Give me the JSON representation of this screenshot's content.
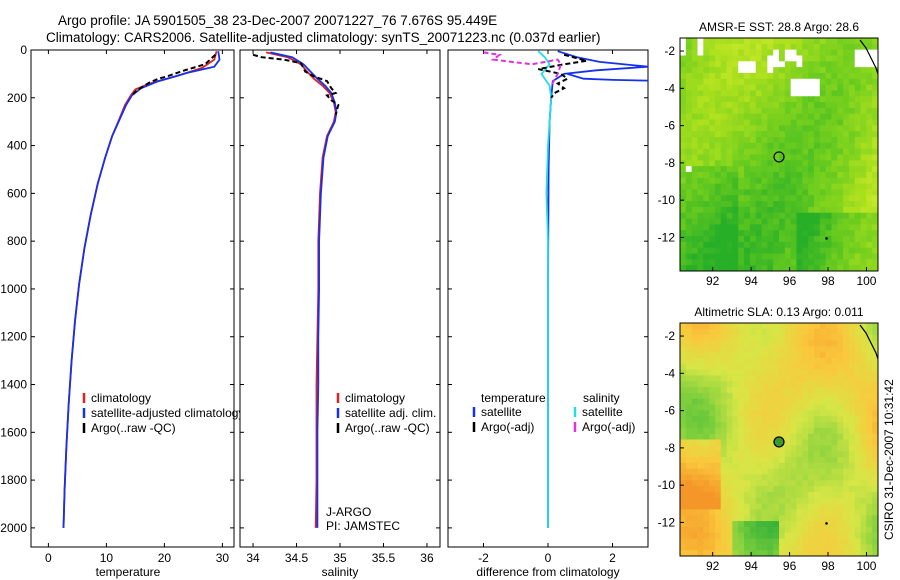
{
  "title": {
    "line1": "Argo profile: JA 5901505_38 23-Dec-2007 20071227_76 7.676S 95.449E",
    "line2": "Climatology: CARS2006. Satellite-adjusted climatology: synTS_20071223.nc (0.037d earlier)"
  },
  "side_stamp": "CSIRO 31-Dec-2007 10:31:42",
  "colors": {
    "climatology": "#dd2222",
    "satellite": "#1530ee",
    "argo": "#000000",
    "salinity_satellite": "#22dde6",
    "salinity_argo": "#e030e0"
  },
  "chart_data": [
    {
      "type": "line",
      "name": "temperature",
      "xlabel": "temperature",
      "ylabel": "",
      "xlim": [
        -3,
        32
      ],
      "ylim": [
        0,
        2080
      ],
      "xticks": [
        0,
        10,
        20,
        30
      ],
      "yticks": [
        0,
        200,
        400,
        600,
        800,
        1000,
        1200,
        1400,
        1600,
        1800,
        2000
      ],
      "legend": [
        "climatology",
        "satellite-adjusted climatology",
        "Argo(..raw -QC)"
      ],
      "legend_position": "lower-center",
      "series": [
        {
          "name": "climatology",
          "color": "climatology",
          "dash": "",
          "points": [
            [
              29.0,
              5
            ],
            [
              28.6,
              40
            ],
            [
              26.5,
              75
            ],
            [
              22.0,
              110
            ],
            [
              17.5,
              140
            ],
            [
              15.0,
              165
            ],
            [
              14.2,
              190
            ],
            [
              13.2,
              230
            ],
            [
              12.2,
              290
            ],
            [
              11.0,
              360
            ],
            [
              9.8,
              450
            ],
            [
              8.5,
              560
            ],
            [
              7.3,
              690
            ],
            [
              6.2,
              830
            ],
            [
              5.3,
              980
            ],
            [
              4.6,
              1130
            ],
            [
              4.0,
              1300
            ],
            [
              3.5,
              1480
            ],
            [
              3.1,
              1660
            ],
            [
              2.8,
              1840
            ],
            [
              2.6,
              2000
            ]
          ]
        },
        {
          "name": "satellite-adjusted climatology",
          "color": "satellite",
          "dash": "",
          "points": [
            [
              29.3,
              5
            ],
            [
              29.5,
              40
            ],
            [
              28.6,
              70
            ],
            [
              24.0,
              95
            ],
            [
              19.0,
              130
            ],
            [
              16.0,
              160
            ],
            [
              14.4,
              190
            ],
            [
              13.4,
              230
            ],
            [
              12.3,
              290
            ],
            [
              11.0,
              360
            ],
            [
              9.8,
              450
            ],
            [
              8.5,
              560
            ],
            [
              7.3,
              690
            ],
            [
              6.2,
              830
            ],
            [
              5.3,
              980
            ],
            [
              4.6,
              1130
            ],
            [
              4.0,
              1300
            ],
            [
              3.5,
              1480
            ],
            [
              3.1,
              1660
            ],
            [
              2.8,
              1840
            ],
            [
              2.6,
              2000
            ]
          ]
        },
        {
          "name": "Argo(..raw -QC)",
          "color": "argo",
          "dash": "5,3",
          "points": [
            [
              28.8,
              20
            ],
            [
              27.0,
              60
            ],
            [
              23.5,
              85
            ],
            [
              20.5,
              110
            ],
            [
              19.0,
              120
            ],
            [
              17.5,
              135
            ],
            [
              16.5,
              150
            ],
            [
              15.2,
              170
            ],
            [
              14.6,
              185
            ]
          ]
        }
      ]
    },
    {
      "type": "line",
      "name": "salinity",
      "xlabel": "salinity",
      "ylabel": "",
      "xlim": [
        33.85,
        36.15
      ],
      "ylim": [
        0,
        2080
      ],
      "xticks": [
        "34",
        "34.5",
        "35",
        "35.5",
        "36"
      ],
      "xtick_values": [
        34,
        34.5,
        35,
        35.5,
        36
      ],
      "yticks": [],
      "legend": [
        "climatology",
        "satellite adj. clim.",
        "Argo(..raw -QC)"
      ],
      "legend_position": "lower-right",
      "annotations": [
        "J-ARGO",
        "PI: JAMSTEC"
      ],
      "series": [
        {
          "name": "climatology",
          "color": "climatology",
          "dash": "",
          "points": [
            [
              34.15,
              10
            ],
            [
              34.4,
              30
            ],
            [
              34.55,
              60
            ],
            [
              34.62,
              90
            ],
            [
              34.7,
              120
            ],
            [
              34.8,
              150
            ],
            [
              34.88,
              180
            ],
            [
              34.93,
              220
            ],
            [
              34.95,
              260
            ],
            [
              34.93,
              300
            ],
            [
              34.85,
              360
            ],
            [
              34.8,
              450
            ],
            [
              34.77,
              600
            ],
            [
              34.75,
              800
            ],
            [
              34.75,
              1000
            ],
            [
              34.74,
              1200
            ],
            [
              34.73,
              1400
            ],
            [
              34.73,
              1600
            ],
            [
              34.73,
              1800
            ],
            [
              34.72,
              2000
            ]
          ]
        },
        {
          "name": "satellite adj. clim.",
          "color": "satellite",
          "dash": "",
          "points": [
            [
              34.2,
              10
            ],
            [
              34.45,
              30
            ],
            [
              34.58,
              60
            ],
            [
              34.66,
              90
            ],
            [
              34.74,
              120
            ],
            [
              34.83,
              150
            ],
            [
              34.9,
              180
            ],
            [
              34.94,
              220
            ],
            [
              34.96,
              260
            ],
            [
              34.94,
              300
            ],
            [
              34.86,
              360
            ],
            [
              34.81,
              450
            ],
            [
              34.78,
              600
            ],
            [
              34.76,
              800
            ],
            [
              34.76,
              1000
            ],
            [
              34.75,
              1200
            ],
            [
              34.75,
              1400
            ],
            [
              34.74,
              1600
            ],
            [
              34.74,
              1800
            ],
            [
              34.74,
              2000
            ]
          ]
        },
        {
          "name": "Argo(..raw -QC)",
          "color": "argo",
          "dash": "5,3",
          "points": [
            [
              34.0,
              20
            ],
            [
              34.1,
              30
            ],
            [
              34.35,
              40
            ],
            [
              34.55,
              55
            ],
            [
              34.6,
              90
            ],
            [
              34.7,
              110
            ],
            [
              34.85,
              130
            ],
            [
              34.9,
              160
            ],
            [
              34.95,
              180
            ],
            [
              34.85,
              190
            ],
            [
              34.9,
              210
            ],
            [
              34.98,
              230
            ],
            [
              34.95,
              270
            ]
          ]
        }
      ]
    },
    {
      "type": "line",
      "name": "difference",
      "xlabel": "difference from climatology",
      "ylabel": "",
      "xlim": [
        -3.1,
        3.1
      ],
      "ylim": [
        0,
        2080
      ],
      "xticks": [
        -2,
        0,
        2
      ],
      "yticks": [],
      "legend_left_title": "temperature",
      "legend_right_title": "salinity",
      "legend_left": [
        "satellite",
        "Argo(-adj)"
      ],
      "legend_right": [
        "satellite",
        "Argo(-adj)"
      ],
      "legend_position": "lower-center",
      "series": [
        {
          "name": "temperature satellite",
          "color": "satellite",
          "dash": "",
          "points": [
            [
              0.3,
              5
            ],
            [
              0.9,
              30
            ],
            [
              1.6,
              50
            ],
            [
              3.1,
              70
            ],
            [
              1.5,
              85
            ],
            [
              0.5,
              100
            ],
            [
              0.15,
              130
            ],
            [
              0.1,
              200
            ],
            [
              0.05,
              300
            ],
            [
              0.02,
              500
            ],
            [
              0,
              1000
            ],
            [
              0,
              1500
            ],
            [
              0,
              2000
            ]
          ]
        },
        {
          "name": "temperature satellite (deep spike)",
          "color": "satellite",
          "dash": "",
          "points": [
            [
              0.6,
              100
            ],
            [
              1.1,
              120
            ],
            [
              2.0,
              125
            ],
            [
              3.1,
              128
            ]
          ]
        },
        {
          "name": "salinity satellite",
          "color": "salinity_satellite",
          "dash": "",
          "points": [
            [
              -0.3,
              5
            ],
            [
              -0.1,
              30
            ],
            [
              0.05,
              60
            ],
            [
              -0.2,
              100
            ],
            [
              0.05,
              150
            ],
            [
              0.1,
              200
            ],
            [
              0.05,
              300
            ],
            [
              0,
              400
            ],
            [
              -0.05,
              600
            ],
            [
              0,
              800
            ],
            [
              0,
              1000
            ],
            [
              0,
              1400
            ],
            [
              0,
              1800
            ],
            [
              0,
              2000
            ]
          ]
        },
        {
          "name": "temperature Argo(-adj)",
          "color": "argo",
          "dash": "5,3",
          "points": [
            [
              0.5,
              20
            ],
            [
              1.2,
              45
            ],
            [
              0.5,
              60
            ],
            [
              -0.3,
              80
            ],
            [
              0.4,
              100
            ],
            [
              0.6,
              120
            ],
            [
              0.3,
              140
            ],
            [
              0.5,
              160
            ],
            [
              0.2,
              180
            ],
            [
              0.1,
              200
            ]
          ]
        },
        {
          "name": "salinity Argo(-adj)",
          "color": "salinity_argo",
          "dash": "5,3",
          "points": [
            [
              -2.0,
              10
            ],
            [
              -1.5,
              20
            ],
            [
              -1.7,
              40
            ],
            [
              -0.5,
              60
            ],
            [
              0.3,
              40
            ],
            [
              0.4,
              60
            ],
            [
              0.3,
              100
            ],
            [
              0.1,
              150
            ]
          ]
        }
      ]
    },
    {
      "type": "heatmap",
      "name": "sst_map",
      "title": "AMSR-E SST: 28.8 Argo: 28.6",
      "xlim": [
        90.3,
        100.6
      ],
      "ylim": [
        -13.8,
        -1.3
      ],
      "xticks": [
        92,
        94,
        96,
        98,
        100
      ],
      "yticks": [
        -2,
        -4,
        -6,
        -8,
        -10,
        -12
      ],
      "argo_position": [
        95.45,
        -7.68
      ],
      "palette": "green-yellow"
    },
    {
      "type": "heatmap",
      "name": "sla_map",
      "title": "Altimetric SLA: 0.13 Argo: 0.011",
      "xlim": [
        90.3,
        100.6
      ],
      "ylim": [
        -13.8,
        -1.3
      ],
      "xticks": [
        92,
        94,
        96,
        98,
        100
      ],
      "yticks": [
        -2,
        -4,
        -6,
        -8,
        -10,
        -12
      ],
      "argo_position": [
        95.45,
        -7.68
      ],
      "palette": "green-orange"
    }
  ]
}
